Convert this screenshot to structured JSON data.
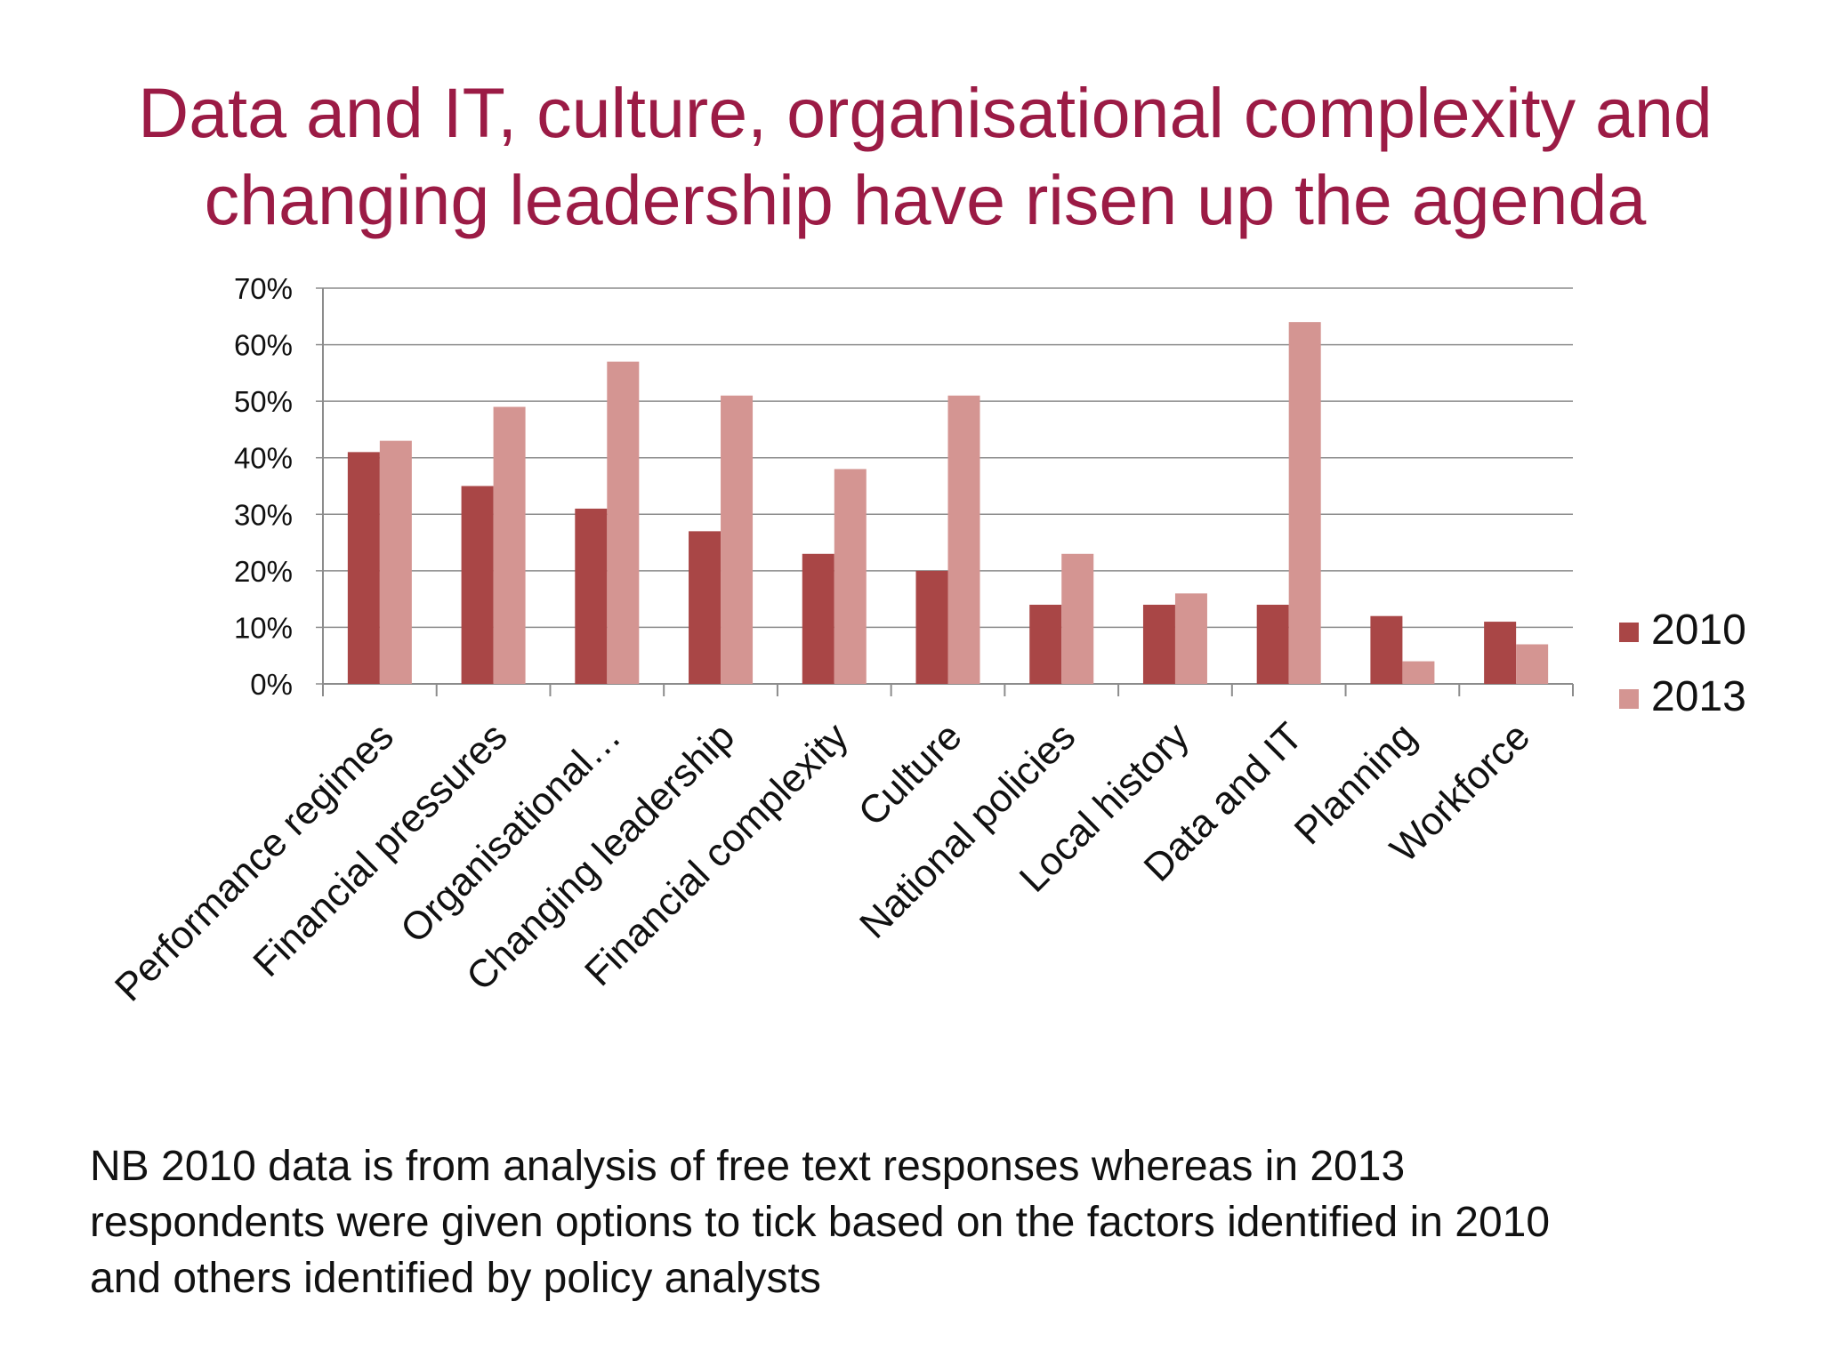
{
  "slide": {
    "title_line1": "Data and IT, culture, organisational complexity and",
    "title_line2": "changing leadership have risen up the agenda",
    "note_line1": "NB  2010 data is from analysis of free text responses whereas in 2013",
    "note_line2": "respondents were given options to tick based on the factors identified in 2010",
    "note_line3": "and others identified by policy analysts"
  },
  "colors": {
    "title": "#9b1b45",
    "series_2010": "#a94646",
    "series_2013": "#d49592",
    "gridline": "#8c8c8c"
  },
  "chart_data": {
    "type": "bar",
    "title": "",
    "xlabel": "",
    "ylabel": "",
    "ylim": [
      0,
      70
    ],
    "yticks": [
      "0%",
      "10%",
      "20%",
      "30%",
      "40%",
      "50%",
      "60%",
      "70%"
    ],
    "grid": true,
    "legend_position": "right",
    "categories": [
      "Performance regimes",
      "Financial pressures",
      "Organisational…",
      "Changing leadership",
      "Financial complexity",
      "Culture",
      "National policies",
      "Local history",
      "Data and IT",
      "Planning",
      "Workforce"
    ],
    "series": [
      {
        "name": "2010",
        "values": [
          41,
          35,
          31,
          27,
          23,
          20,
          14,
          14,
          14,
          12,
          11
        ]
      },
      {
        "name": "2013",
        "values": [
          43,
          49,
          57,
          51,
          38,
          51,
          23,
          16,
          64,
          4,
          7
        ]
      }
    ]
  }
}
